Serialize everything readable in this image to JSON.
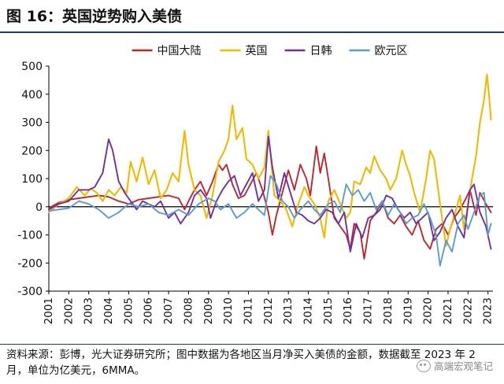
{
  "figure": {
    "title": "图 16：英国逆势购入美债",
    "source": "资料来源：彭博，光大证券研究所；图中数据为各地区当月净买入美债的金额，数据截至 2023 年 2 月，单位为亿美元，6MMA。",
    "watermark": "高端宏观笔记"
  },
  "chart_data": {
    "type": "line",
    "title": "",
    "xlabel": "",
    "ylabel": "",
    "ylim": [
      -300,
      500
    ],
    "yticks": [
      -300,
      -200,
      -100,
      0,
      100,
      200,
      300,
      400,
      500
    ],
    "xlim": [
      2001.0,
      2023.25
    ],
    "xticks": [
      "2001",
      "2002",
      "2003",
      "2004",
      "2005",
      "2006",
      "2007",
      "2008",
      "2009",
      "2010",
      "2011",
      "2012",
      "2013",
      "2014",
      "2015",
      "2016",
      "2017",
      "2018",
      "2019",
      "2020",
      "2021",
      "2022",
      "2023"
    ],
    "legend_position": "top",
    "grid": false,
    "series": [
      {
        "name": "中国大陆",
        "color": "#c0272d",
        "points": [
          [
            2001.0,
            -5
          ],
          [
            2001.5,
            15
          ],
          [
            2002.0,
            25
          ],
          [
            2002.5,
            30
          ],
          [
            2003.0,
            35
          ],
          [
            2003.5,
            40
          ],
          [
            2004.0,
            35
          ],
          [
            2004.5,
            20
          ],
          [
            2005.0,
            10
          ],
          [
            2005.5,
            25
          ],
          [
            2006.0,
            30
          ],
          [
            2006.5,
            35
          ],
          [
            2007.0,
            40
          ],
          [
            2007.5,
            30
          ],
          [
            2007.8,
            -10
          ],
          [
            2008.0,
            20
          ],
          [
            2008.3,
            60
          ],
          [
            2008.6,
            90
          ],
          [
            2008.9,
            40
          ],
          [
            2009.2,
            90
          ],
          [
            2009.5,
            150
          ],
          [
            2009.7,
            130
          ],
          [
            2009.9,
            150
          ],
          [
            2010.2,
            80
          ],
          [
            2010.5,
            30
          ],
          [
            2010.8,
            40
          ],
          [
            2011.1,
            80
          ],
          [
            2011.4,
            120
          ],
          [
            2011.7,
            60
          ],
          [
            2012.0,
            -20
          ],
          [
            2012.2,
            -100
          ],
          [
            2012.4,
            -30
          ],
          [
            2012.7,
            50
          ],
          [
            2013.0,
            130
          ],
          [
            2013.3,
            60
          ],
          [
            2013.6,
            150
          ],
          [
            2013.9,
            100
          ],
          [
            2014.1,
            40
          ],
          [
            2014.4,
            215
          ],
          [
            2014.6,
            120
          ],
          [
            2014.8,
            190
          ],
          [
            2015.0,
            100
          ],
          [
            2015.3,
            -40
          ],
          [
            2015.6,
            -70
          ],
          [
            2015.9,
            -100
          ],
          [
            2016.1,
            -150
          ],
          [
            2016.3,
            -60
          ],
          [
            2016.6,
            -90
          ],
          [
            2016.8,
            -185
          ],
          [
            2017.1,
            -50
          ],
          [
            2017.4,
            -20
          ],
          [
            2017.7,
            20
          ],
          [
            2018.0,
            -40
          ],
          [
            2018.3,
            -60
          ],
          [
            2018.6,
            -30
          ],
          [
            2018.9,
            -70
          ],
          [
            2019.2,
            -100
          ],
          [
            2019.5,
            -50
          ],
          [
            2019.8,
            -120
          ],
          [
            2020.1,
            -150
          ],
          [
            2020.4,
            -80
          ],
          [
            2020.7,
            -60
          ],
          [
            2021.0,
            -100
          ],
          [
            2021.3,
            -40
          ],
          [
            2021.6,
            -10
          ],
          [
            2021.9,
            30
          ],
          [
            2022.1,
            60
          ],
          [
            2022.4,
            -30
          ],
          [
            2022.6,
            50
          ],
          [
            2022.9,
            10
          ],
          [
            2023.15,
            -20
          ]
        ]
      },
      {
        "name": "英国",
        "color": "#f5b800",
        "points": [
          [
            2001.0,
            -20
          ],
          [
            2001.5,
            10
          ],
          [
            2002.0,
            30
          ],
          [
            2002.4,
            70
          ],
          [
            2002.8,
            40
          ],
          [
            2003.1,
            65
          ],
          [
            2003.4,
            50
          ],
          [
            2003.7,
            20
          ],
          [
            2004.0,
            60
          ],
          [
            2004.3,
            40
          ],
          [
            2004.6,
            70
          ],
          [
            2004.9,
            50
          ],
          [
            2005.1,
            160
          ],
          [
            2005.4,
            90
          ],
          [
            2005.7,
            175
          ],
          [
            2006.0,
            80
          ],
          [
            2006.3,
            130
          ],
          [
            2006.6,
            30
          ],
          [
            2006.9,
            60
          ],
          [
            2007.2,
            120
          ],
          [
            2007.5,
            90
          ],
          [
            2007.8,
            270
          ],
          [
            2008.0,
            150
          ],
          [
            2008.3,
            60
          ],
          [
            2008.6,
            40
          ],
          [
            2008.9,
            -40
          ],
          [
            2009.2,
            40
          ],
          [
            2009.5,
            160
          ],
          [
            2009.8,
            200
          ],
          [
            2010.0,
            240
          ],
          [
            2010.2,
            360
          ],
          [
            2010.4,
            240
          ],
          [
            2010.7,
            280
          ],
          [
            2010.9,
            170
          ],
          [
            2011.2,
            150
          ],
          [
            2011.5,
            100
          ],
          [
            2011.8,
            140
          ],
          [
            2012.0,
            270
          ],
          [
            2012.3,
            40
          ],
          [
            2012.6,
            20
          ],
          [
            2012.9,
            -10
          ],
          [
            2013.2,
            -70
          ],
          [
            2013.5,
            10
          ],
          [
            2013.8,
            70
          ],
          [
            2014.0,
            40
          ],
          [
            2014.3,
            10
          ],
          [
            2014.6,
            -40
          ],
          [
            2014.8,
            -110
          ],
          [
            2015.0,
            20
          ],
          [
            2015.3,
            60
          ],
          [
            2015.6,
            10
          ],
          [
            2015.9,
            -40
          ],
          [
            2016.1,
            -20
          ],
          [
            2016.3,
            90
          ],
          [
            2016.6,
            80
          ],
          [
            2016.9,
            140
          ],
          [
            2017.1,
            120
          ],
          [
            2017.3,
            180
          ],
          [
            2017.6,
            130
          ],
          [
            2017.9,
            100
          ],
          [
            2018.1,
            60
          ],
          [
            2018.4,
            100
          ],
          [
            2018.7,
            200
          ],
          [
            2018.9,
            150
          ],
          [
            2019.1,
            110
          ],
          [
            2019.3,
            50
          ],
          [
            2019.6,
            -20
          ],
          [
            2019.9,
            100
          ],
          [
            2020.1,
            200
          ],
          [
            2020.3,
            170
          ],
          [
            2020.6,
            10
          ],
          [
            2020.9,
            -140
          ],
          [
            2021.1,
            -80
          ],
          [
            2021.4,
            -10
          ],
          [
            2021.6,
            40
          ],
          [
            2021.8,
            -80
          ],
          [
            2022.0,
            10
          ],
          [
            2022.2,
            100
          ],
          [
            2022.4,
            180
          ],
          [
            2022.6,
            300
          ],
          [
            2022.8,
            380
          ],
          [
            2022.95,
            470
          ],
          [
            2023.05,
            400
          ],
          [
            2023.15,
            310
          ]
        ]
      },
      {
        "name": "日韩",
        "color": "#7030a0",
        "points": [
          [
            2001.0,
            -10
          ],
          [
            2001.5,
            10
          ],
          [
            2002.0,
            20
          ],
          [
            2002.5,
            60
          ],
          [
            2003.0,
            60
          ],
          [
            2003.3,
            70
          ],
          [
            2003.7,
            120
          ],
          [
            2004.0,
            240
          ],
          [
            2004.2,
            200
          ],
          [
            2004.5,
            90
          ],
          [
            2004.8,
            50
          ],
          [
            2005.1,
            20
          ],
          [
            2005.4,
            -10
          ],
          [
            2005.7,
            20
          ],
          [
            2006.0,
            10
          ],
          [
            2006.3,
            0
          ],
          [
            2006.6,
            20
          ],
          [
            2007.0,
            -40
          ],
          [
            2007.3,
            -20
          ],
          [
            2007.6,
            -60
          ],
          [
            2008.0,
            -20
          ],
          [
            2008.3,
            40
          ],
          [
            2008.6,
            60
          ],
          [
            2008.9,
            30
          ],
          [
            2009.1,
            -40
          ],
          [
            2009.4,
            20
          ],
          [
            2009.7,
            60
          ],
          [
            2010.0,
            90
          ],
          [
            2010.3,
            110
          ],
          [
            2010.6,
            40
          ],
          [
            2010.9,
            80
          ],
          [
            2011.2,
            120
          ],
          [
            2011.5,
            20
          ],
          [
            2011.8,
            60
          ],
          [
            2012.0,
            250
          ],
          [
            2012.2,
            140
          ],
          [
            2012.5,
            30
          ],
          [
            2012.8,
            120
          ],
          [
            2013.1,
            50
          ],
          [
            2013.4,
            -20
          ],
          [
            2013.7,
            -30
          ],
          [
            2014.0,
            -50
          ],
          [
            2014.3,
            -60
          ],
          [
            2014.6,
            -40
          ],
          [
            2014.9,
            -10
          ],
          [
            2015.2,
            -20
          ],
          [
            2015.5,
            -60
          ],
          [
            2015.8,
            -20
          ],
          [
            2016.1,
            -160
          ],
          [
            2016.4,
            -60
          ],
          [
            2016.7,
            -110
          ],
          [
            2017.0,
            -40
          ],
          [
            2017.3,
            -30
          ],
          [
            2017.6,
            -10
          ],
          [
            2017.9,
            40
          ],
          [
            2018.2,
            30
          ],
          [
            2018.5,
            -10
          ],
          [
            2018.8,
            -40
          ],
          [
            2019.1,
            -20
          ],
          [
            2019.4,
            -60
          ],
          [
            2019.7,
            -40
          ],
          [
            2020.0,
            -20
          ],
          [
            2020.3,
            -120
          ],
          [
            2020.6,
            -90
          ],
          [
            2020.9,
            -40
          ],
          [
            2021.2,
            -10
          ],
          [
            2021.5,
            -70
          ],
          [
            2021.8,
            -110
          ],
          [
            2022.1,
            60
          ],
          [
            2022.3,
            80
          ],
          [
            2022.6,
            -20
          ],
          [
            2022.9,
            -70
          ],
          [
            2023.15,
            -150
          ]
        ]
      },
      {
        "name": "欧元区",
        "color": "#5b9bd5",
        "points": [
          [
            2001.0,
            -15
          ],
          [
            2001.5,
            -10
          ],
          [
            2002.0,
            -5
          ],
          [
            2002.5,
            20
          ],
          [
            2003.0,
            10
          ],
          [
            2003.5,
            -10
          ],
          [
            2004.0,
            -40
          ],
          [
            2004.5,
            -20
          ],
          [
            2005.0,
            10
          ],
          [
            2005.5,
            0
          ],
          [
            2006.0,
            10
          ],
          [
            2006.5,
            -20
          ],
          [
            2007.0,
            -30
          ],
          [
            2007.5,
            -10
          ],
          [
            2008.0,
            -30
          ],
          [
            2008.5,
            10
          ],
          [
            2009.0,
            30
          ],
          [
            2009.3,
            20
          ],
          [
            2009.6,
            -10
          ],
          [
            2010.0,
            10
          ],
          [
            2010.4,
            -40
          ],
          [
            2010.8,
            -20
          ],
          [
            2011.2,
            10
          ],
          [
            2011.5,
            -10
          ],
          [
            2011.8,
            -30
          ],
          [
            2012.1,
            110
          ],
          [
            2012.4,
            80
          ],
          [
            2012.7,
            20
          ],
          [
            2013.0,
            0
          ],
          [
            2013.3,
            -40
          ],
          [
            2013.6,
            -10
          ],
          [
            2014.0,
            20
          ],
          [
            2014.3,
            -10
          ],
          [
            2014.6,
            -30
          ],
          [
            2015.0,
            10
          ],
          [
            2015.3,
            20
          ],
          [
            2015.6,
            -20
          ],
          [
            2015.9,
            80
          ],
          [
            2016.2,
            40
          ],
          [
            2016.5,
            60
          ],
          [
            2016.8,
            20
          ],
          [
            2017.1,
            50
          ],
          [
            2017.4,
            -10
          ],
          [
            2017.7,
            20
          ],
          [
            2018.0,
            -30
          ],
          [
            2018.3,
            10
          ],
          [
            2018.6,
            -20
          ],
          [
            2018.9,
            -60
          ],
          [
            2019.2,
            -40
          ],
          [
            2019.5,
            -30
          ],
          [
            2019.8,
            10
          ],
          [
            2020.1,
            -40
          ],
          [
            2020.4,
            -100
          ],
          [
            2020.6,
            -210
          ],
          [
            2020.9,
            -120
          ],
          [
            2021.2,
            -160
          ],
          [
            2021.5,
            -60
          ],
          [
            2021.8,
            -30
          ],
          [
            2022.0,
            -80
          ],
          [
            2022.3,
            -20
          ],
          [
            2022.6,
            40
          ],
          [
            2022.8,
            50
          ],
          [
            2023.0,
            -100
          ],
          [
            2023.15,
            -60
          ]
        ]
      }
    ]
  }
}
